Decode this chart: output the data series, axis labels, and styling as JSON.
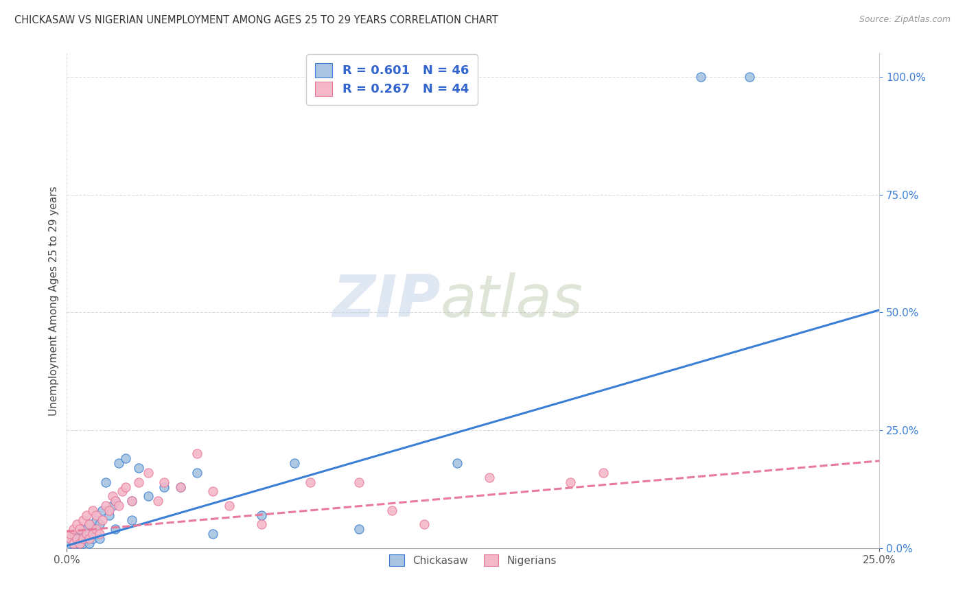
{
  "title": "CHICKASAW VS NIGERIAN UNEMPLOYMENT AMONG AGES 25 TO 29 YEARS CORRELATION CHART",
  "source": "Source: ZipAtlas.com",
  "ylabel": "Unemployment Among Ages 25 to 29 years",
  "xlim": [
    0.0,
    0.25
  ],
  "ylim": [
    0.0,
    1.05
  ],
  "y_tick_vals": [
    0.0,
    0.25,
    0.5,
    0.75,
    1.0
  ],
  "chickasaw_color": "#a8c4e0",
  "nigerian_color": "#f4b8c8",
  "chickasaw_line_color": "#3a7fd5",
  "nigerian_line_color": "#e8799a",
  "chickasaw_R": 0.601,
  "chickasaw_N": 46,
  "nigerian_R": 0.267,
  "nigerian_N": 44,
  "legend_label_1": "Chickasaw",
  "legend_label_2": "Nigerians",
  "watermark_zip": "ZIP",
  "watermark_atlas": "atlas",
  "background_color": "#ffffff",
  "grid_color": "#cccccc",
  "chickasaw_x": [
    0.001,
    0.001,
    0.002,
    0.002,
    0.003,
    0.003,
    0.003,
    0.004,
    0.004,
    0.004,
    0.005,
    0.005,
    0.005,
    0.006,
    0.006,
    0.007,
    0.007,
    0.007,
    0.008,
    0.008,
    0.009,
    0.009,
    0.01,
    0.01,
    0.011,
    0.012,
    0.013,
    0.014,
    0.015,
    0.015,
    0.016,
    0.018,
    0.02,
    0.02,
    0.022,
    0.025,
    0.03,
    0.035,
    0.04,
    0.045,
    0.06,
    0.07,
    0.09,
    0.12,
    0.195,
    0.21
  ],
  "chickasaw_y": [
    0.01,
    0.02,
    0.01,
    0.03,
    0.01,
    0.02,
    0.03,
    0.01,
    0.02,
    0.04,
    0.01,
    0.02,
    0.03,
    0.02,
    0.04,
    0.01,
    0.03,
    0.05,
    0.02,
    0.04,
    0.03,
    0.06,
    0.02,
    0.05,
    0.08,
    0.14,
    0.07,
    0.09,
    0.1,
    0.04,
    0.18,
    0.19,
    0.06,
    0.1,
    0.17,
    0.11,
    0.13,
    0.13,
    0.16,
    0.03,
    0.07,
    0.18,
    0.04,
    0.18,
    1.0,
    1.0
  ],
  "nigerian_x": [
    0.001,
    0.001,
    0.002,
    0.002,
    0.003,
    0.003,
    0.004,
    0.004,
    0.005,
    0.005,
    0.006,
    0.006,
    0.007,
    0.007,
    0.008,
    0.008,
    0.009,
    0.009,
    0.01,
    0.011,
    0.012,
    0.013,
    0.014,
    0.015,
    0.016,
    0.017,
    0.018,
    0.02,
    0.022,
    0.025,
    0.028,
    0.03,
    0.035,
    0.04,
    0.045,
    0.05,
    0.06,
    0.075,
    0.09,
    0.1,
    0.11,
    0.13,
    0.155,
    0.165
  ],
  "nigerian_y": [
    0.02,
    0.03,
    0.01,
    0.04,
    0.02,
    0.05,
    0.01,
    0.04,
    0.02,
    0.06,
    0.03,
    0.07,
    0.02,
    0.05,
    0.03,
    0.08,
    0.04,
    0.07,
    0.03,
    0.06,
    0.09,
    0.08,
    0.11,
    0.1,
    0.09,
    0.12,
    0.13,
    0.1,
    0.14,
    0.16,
    0.1,
    0.14,
    0.13,
    0.2,
    0.12,
    0.09,
    0.05,
    0.14,
    0.14,
    0.08,
    0.05,
    0.15,
    0.14,
    0.16
  ],
  "chickasaw_trendline": [
    0.0,
    0.25,
    0.005,
    0.505
  ],
  "nigerian_trendline": [
    0.0,
    0.25,
    0.035,
    0.185
  ]
}
